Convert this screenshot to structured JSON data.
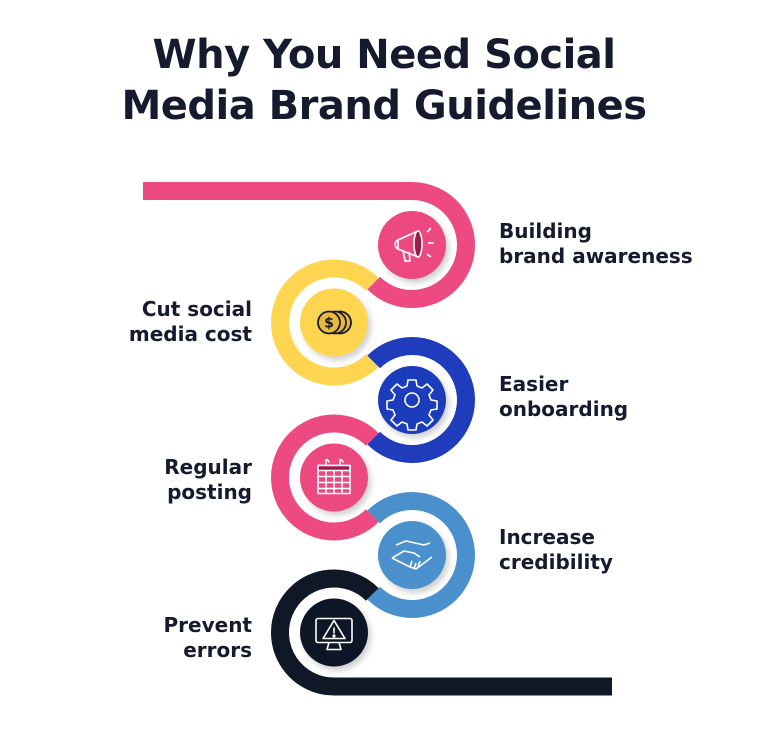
{
  "title": {
    "line1": "Why You Need Social",
    "line2": "Media Brand Guidelines"
  },
  "steps": [
    {
      "line1": "Building",
      "line2": "brand awareness",
      "side": "right",
      "color": "#EC4A80",
      "icon": "megaphone-icon"
    },
    {
      "line1": "Cut social",
      "line2": "media cost",
      "side": "left",
      "color": "#FDD550",
      "icon": "coins-icon"
    },
    {
      "line1": "Easier",
      "line2": "onboarding",
      "side": "right",
      "color": "#1E3CBB",
      "icon": "gear-icon"
    },
    {
      "line1": "Regular",
      "line2": "posting",
      "side": "left",
      "color": "#EC4A80",
      "icon": "calendar-icon"
    },
    {
      "line1": "Increase",
      "line2": "credibility",
      "side": "right",
      "color": "#4A90CC",
      "icon": "handshake-icon"
    },
    {
      "line1": "Prevent",
      "line2": "errors",
      "side": "left",
      "color": "#101827",
      "icon": "monitor-warning-icon"
    }
  ]
}
